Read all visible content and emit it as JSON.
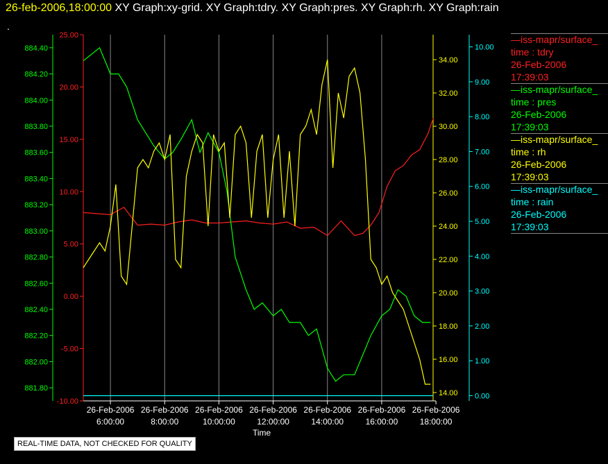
{
  "header": {
    "timestamp": "26-feb-2006,18:00:00",
    "graphs": "XY Graph:xy-grid.  XY Graph:tdry.  XY Graph:pres.  XY Graph:rh.  XY Graph:rain"
  },
  "dot": ".",
  "notice": "REAL-TIME DATA, NOT CHECKED FOR QUALITY",
  "legend": [
    {
      "name": "—iss-mapr/surface_",
      "time": "time : tdry",
      "date": "26-Feb-2006",
      "clock": "17:39:03",
      "color": "#ff2020"
    },
    {
      "name": "—iss-mapr/surface_",
      "time": "time : pres",
      "date": "26-Feb-2006",
      "clock": "17:39:03",
      "color": "#00ff00"
    },
    {
      "name": "—iss-mapr/surface_",
      "time": "time : rh",
      "date": "26-Feb-2006",
      "clock": "17:39:03",
      "color": "#ffff00"
    },
    {
      "name": "—iss-mapr/surface_",
      "time": "time : rain",
      "date": "26-Feb-2006",
      "clock": "17:39:03",
      "color": "#00ffff"
    }
  ],
  "chart_data": {
    "type": "line",
    "xlabel": "Time",
    "x_ticks": [
      {
        "t": 6,
        "l1": "26-Feb-2006",
        "l2": "6:00:00"
      },
      {
        "t": 8,
        "l1": "26-Feb-2006",
        "l2": "8:00:00"
      },
      {
        "t": 10,
        "l1": "26-Feb-2006",
        "l2": "10:00:00"
      },
      {
        "t": 12,
        "l1": "26-Feb-2006",
        "l2": "12:00:00"
      },
      {
        "t": 14,
        "l1": "26-Feb-2006",
        "l2": "14:00:00"
      },
      {
        "t": 16,
        "l1": "26-Feb-2006",
        "l2": "16:00:00"
      },
      {
        "t": 18,
        "l1": "26-Feb-2006",
        "l2": "18:00:00"
      }
    ],
    "xlim": [
      5.0,
      18.1
    ],
    "axes": {
      "tdry": {
        "color": "#ff2020",
        "ylim": [
          -10,
          25
        ],
        "ticks": [
          "25.00",
          "20.00",
          "15.00",
          "10.00",
          "5.00",
          "0.00",
          "-5.00",
          "-10.00"
        ]
      },
      "pres": {
        "color": "#00ff00",
        "ylim": [
          881.7,
          884.5
        ],
        "ticks": [
          "884.40",
          "884.20",
          "884.00",
          "883.80",
          "883.60",
          "883.40",
          "883.20",
          "883.00",
          "882.80",
          "882.60",
          "882.40",
          "882.20",
          "882.00",
          "881.80"
        ]
      },
      "rh": {
        "color": "#ffff00",
        "ylim": [
          13.5,
          35.5
        ],
        "ticks": [
          "34.00",
          "32.00",
          "30.00",
          "28.00",
          "26.00",
          "24.00",
          "22.00",
          "20.00",
          "18.00",
          "16.00",
          "14.00"
        ]
      },
      "rain": {
        "color": "#00ffff",
        "ylim": [
          -0.15,
          10.35
        ],
        "ticks": [
          "10.00",
          "9.00",
          "8.00",
          "7.00",
          "6.00",
          "5.00",
          "4.00",
          "3.00",
          "2.00",
          "1.00",
          "0.00"
        ]
      }
    },
    "series": [
      {
        "name": "tdry",
        "axis": "tdry",
        "color": "#ff2020",
        "x": [
          5.0,
          5.5,
          6.0,
          6.5,
          7.0,
          7.5,
          8.0,
          8.5,
          9.0,
          9.5,
          10.0,
          10.5,
          11.0,
          11.5,
          12.0,
          12.5,
          13.0,
          13.5,
          14.0,
          14.5,
          15.0,
          15.3,
          15.6,
          15.9,
          16.2,
          16.5,
          16.8,
          17.1,
          17.4,
          17.7,
          17.9
        ],
        "y": [
          8.0,
          7.9,
          7.8,
          8.5,
          6.8,
          6.9,
          6.8,
          7.1,
          7.3,
          7.0,
          7.0,
          7.1,
          7.2,
          7.0,
          6.9,
          7.1,
          6.5,
          6.6,
          5.8,
          7.2,
          5.8,
          6.0,
          6.8,
          8.0,
          10.5,
          12.0,
          12.5,
          13.5,
          14.0,
          15.5,
          17.0
        ]
      },
      {
        "name": "pres",
        "axis": "pres",
        "color": "#00ff00",
        "x": [
          5.0,
          5.3,
          5.6,
          6.0,
          6.3,
          6.6,
          7.0,
          7.3,
          7.6,
          8.0,
          8.3,
          8.6,
          9.0,
          9.3,
          9.6,
          10.0,
          10.3,
          10.6,
          11.0,
          11.3,
          11.6,
          12.0,
          12.3,
          12.6,
          13.0,
          13.3,
          13.6,
          14.0,
          14.3,
          14.6,
          15.0,
          15.3,
          15.6,
          16.0,
          16.3,
          16.6,
          16.9,
          17.2,
          17.5,
          17.8
        ],
        "y": [
          884.3,
          884.35,
          884.4,
          884.2,
          884.2,
          884.1,
          883.85,
          883.75,
          883.65,
          883.55,
          883.6,
          883.7,
          883.85,
          883.6,
          883.75,
          883.6,
          883.3,
          882.8,
          882.55,
          882.4,
          882.45,
          882.35,
          882.4,
          882.3,
          882.3,
          882.2,
          882.25,
          881.95,
          881.85,
          881.9,
          881.9,
          882.05,
          882.2,
          882.35,
          882.4,
          882.55,
          882.5,
          882.35,
          882.3,
          882.3
        ]
      },
      {
        "name": "rh",
        "axis": "rh",
        "color": "#ffff00",
        "x": [
          5.0,
          5.2,
          5.4,
          5.6,
          5.8,
          6.0,
          6.2,
          6.4,
          6.6,
          6.8,
          7.0,
          7.2,
          7.4,
          7.6,
          7.8,
          8.0,
          8.2,
          8.4,
          8.6,
          8.8,
          9.0,
          9.2,
          9.4,
          9.6,
          9.8,
          10.0,
          10.2,
          10.4,
          10.6,
          10.8,
          11.0,
          11.2,
          11.4,
          11.6,
          11.8,
          12.0,
          12.2,
          12.4,
          12.6,
          12.8,
          13.0,
          13.2,
          13.4,
          13.6,
          13.8,
          14.0,
          14.2,
          14.4,
          14.6,
          14.8,
          15.0,
          15.2,
          15.4,
          15.6,
          15.8,
          16.0,
          16.2,
          16.4,
          16.6,
          16.8,
          17.0,
          17.2,
          17.4,
          17.6,
          17.8
        ],
        "y": [
          21.5,
          22.0,
          22.5,
          23.0,
          22.5,
          24.0,
          26.5,
          21.0,
          20.5,
          24.0,
          27.5,
          28.0,
          27.5,
          28.5,
          29.0,
          28.0,
          29.5,
          22.0,
          21.5,
          27.0,
          28.5,
          29.5,
          29.0,
          24.0,
          29.5,
          28.5,
          29.0,
          24.5,
          29.5,
          30.0,
          29.0,
          24.5,
          28.5,
          29.5,
          24.5,
          28.0,
          29.5,
          24.5,
          28.5,
          24.0,
          29.5,
          30.0,
          31.0,
          29.5,
          32.5,
          34.0,
          27.5,
          32.0,
          30.5,
          33.0,
          33.5,
          32.0,
          28.0,
          22.0,
          21.5,
          20.5,
          21.0,
          20.0,
          19.5,
          19.0,
          18.0,
          17.0,
          16.0,
          14.5,
          14.5
        ]
      },
      {
        "name": "rain",
        "axis": "rain",
        "color": "#00ffff",
        "x": [
          5.0,
          17.9
        ],
        "y": [
          0.0,
          0.0
        ]
      }
    ]
  }
}
